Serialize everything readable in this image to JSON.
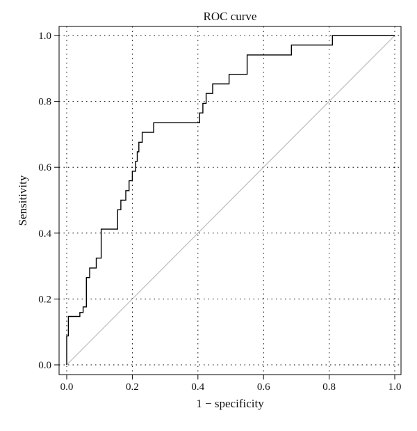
{
  "chart_data": {
    "type": "line",
    "title": "ROC curve",
    "xlabel": "1 − specificity",
    "ylabel": "Sensitivity",
    "xlim": [
      0,
      1
    ],
    "ylim": [
      0,
      1
    ],
    "x_ticks": [
      "0.0",
      "0.2",
      "0.4",
      "0.6",
      "0.8",
      "1.0"
    ],
    "y_ticks": [
      "0.0",
      "0.2",
      "0.4",
      "0.6",
      "0.8",
      "1.0"
    ],
    "grid": true,
    "series": [
      {
        "role": "roc",
        "color": "#000000",
        "x": [
          0.0,
          0.0,
          0.005,
          0.005,
          0.04,
          0.04,
          0.05,
          0.05,
          0.06,
          0.06,
          0.07,
          0.07,
          0.09,
          0.09,
          0.105,
          0.105,
          0.155,
          0.155,
          0.165,
          0.165,
          0.18,
          0.18,
          0.19,
          0.19,
          0.2,
          0.2,
          0.21,
          0.21,
          0.215,
          0.215,
          0.22,
          0.22,
          0.23,
          0.23,
          0.265,
          0.265,
          0.405,
          0.405,
          0.415,
          0.415,
          0.425,
          0.425,
          0.445,
          0.445,
          0.47,
          0.47,
          0.495,
          0.495,
          0.55,
          0.55,
          0.655,
          0.655,
          0.685,
          0.685,
          0.81,
          0.81,
          1.0
        ],
        "y": [
          0.0,
          0.088,
          0.088,
          0.147,
          0.147,
          0.159,
          0.159,
          0.176,
          0.176,
          0.265,
          0.265,
          0.294,
          0.294,
          0.324,
          0.324,
          0.412,
          0.412,
          0.471,
          0.471,
          0.5,
          0.5,
          0.529,
          0.529,
          0.559,
          0.559,
          0.588,
          0.588,
          0.618,
          0.618,
          0.647,
          0.647,
          0.676,
          0.676,
          0.706,
          0.706,
          0.735,
          0.735,
          0.765,
          0.765,
          0.794,
          0.794,
          0.824,
          0.824,
          0.853,
          0.853,
          0.853,
          0.853,
          0.882,
          0.882,
          0.941,
          0.941,
          0.941,
          0.941,
          0.971,
          0.971,
          1.0,
          1.0
        ]
      },
      {
        "role": "reference",
        "color": "#bbbbbb",
        "x": [
          0,
          1
        ],
        "y": [
          0,
          1
        ]
      }
    ]
  }
}
